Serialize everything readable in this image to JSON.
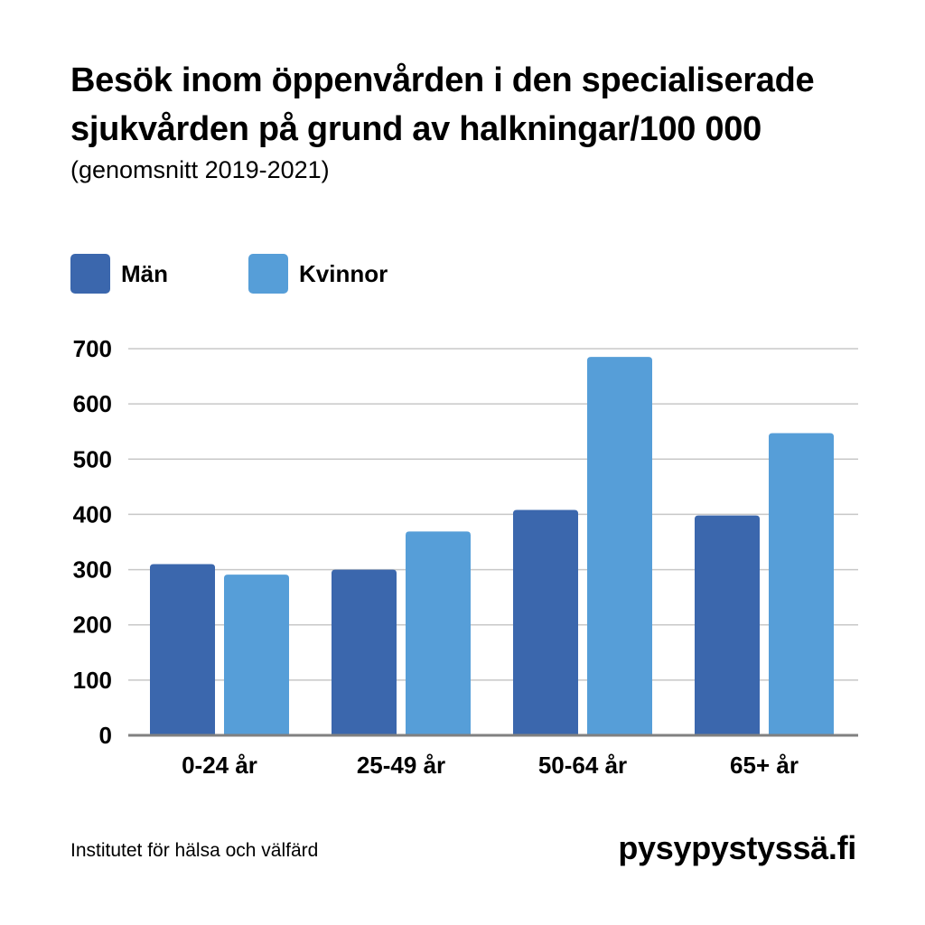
{
  "header": {
    "title_line1": "Besök inom öppenvården i den specialiserade",
    "title_line2": "sjukvården på grund av halkningar/100 000",
    "subtitle": "(genomsnitt 2019-2021)"
  },
  "legend": {
    "items": [
      {
        "label": "Män",
        "color": "#3b67ad"
      },
      {
        "label": "Kvinnor",
        "color": "#569ed8"
      }
    ]
  },
  "chart_data": {
    "type": "bar",
    "title": "Besök inom öppenvården i den specialiserade sjukvården på grund av halkningar/100 000",
    "subtitle": "(genomsnitt 2019-2021)",
    "categories": [
      "0-24 år",
      "25-49 år",
      "50-64 år",
      "65+ år"
    ],
    "series": [
      {
        "name": "Män",
        "color": "#3b67ad",
        "values": [
          310,
          300,
          408,
          398
        ]
      },
      {
        "name": "Kvinnor",
        "color": "#569ed8",
        "values": [
          291,
          369,
          685,
          547
        ]
      }
    ],
    "xlabel": "",
    "ylabel": "",
    "ylim": [
      0,
      700
    ],
    "yticks": [
      0,
      100,
      200,
      300,
      400,
      500,
      600,
      700
    ],
    "grid": true,
    "legend_position": "top-left"
  },
  "footer": {
    "source": "Institutet för hälsa och välfärd",
    "brand": "pysypystyssä.fi"
  }
}
